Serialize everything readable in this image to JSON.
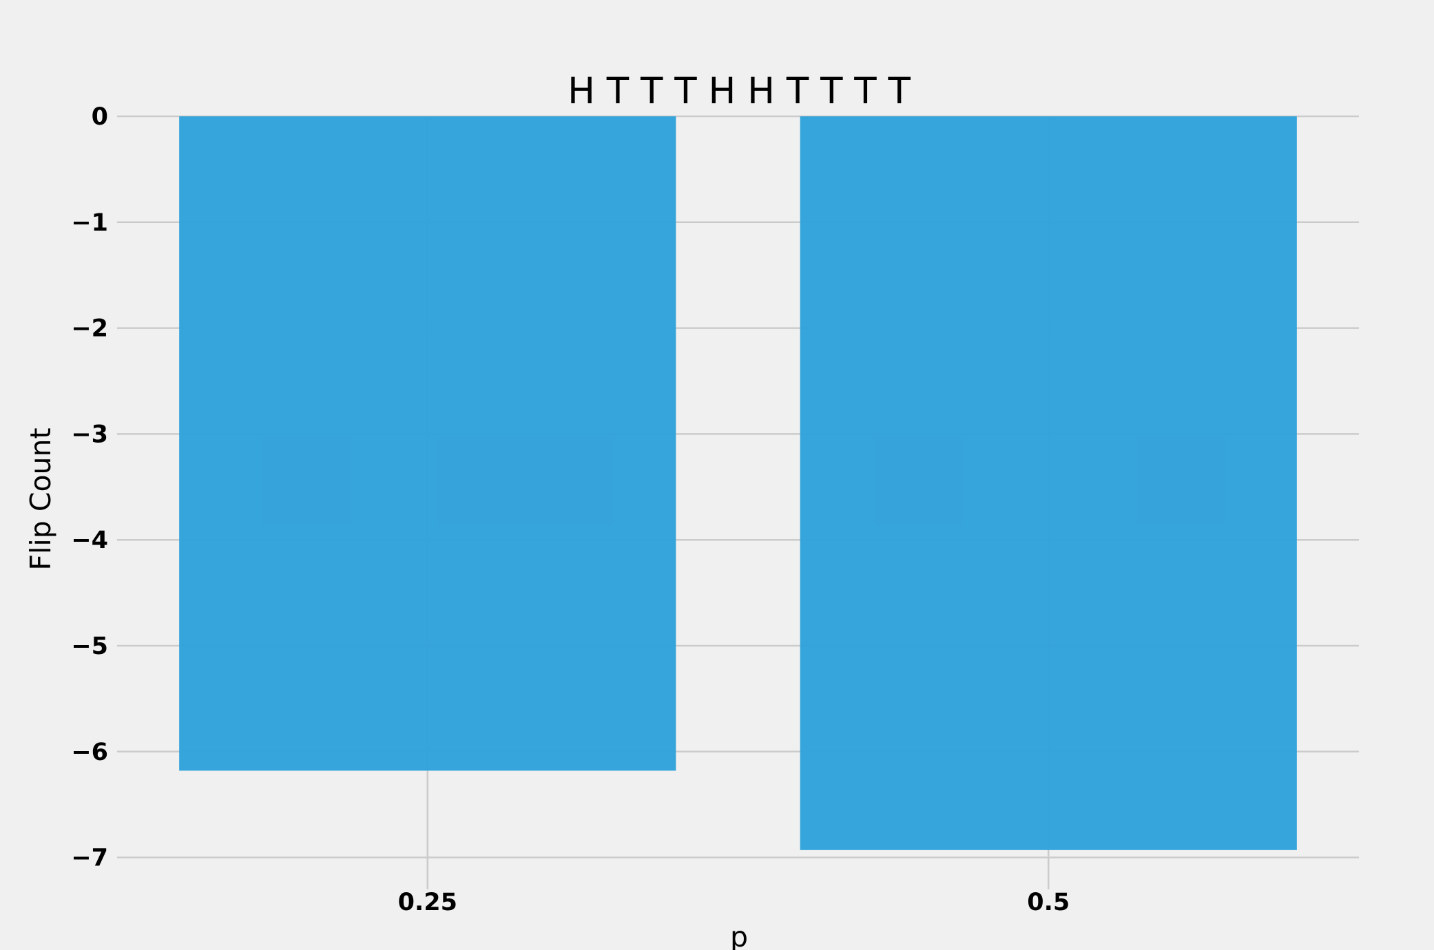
{
  "chart_data": {
    "type": "bar",
    "title": "H T T T H H T T T T",
    "xlabel": "p",
    "ylabel": "Flip Count",
    "categories": [
      "0.25",
      "0.5"
    ],
    "values": [
      -6.18,
      -6.93
    ],
    "ylim": [
      -7.3,
      0
    ],
    "yticks": [
      0,
      -1,
      -2,
      -3,
      -4,
      -5,
      -6,
      -7
    ],
    "ytick_labels": [
      "0",
      "−1",
      "−2",
      "−3",
      "−4",
      "−5",
      "−6",
      "−7"
    ],
    "grid": true,
    "colors": {
      "bar": "#30a2da",
      "background": "#f0f0f0",
      "grid": "#cbcbcb"
    }
  }
}
